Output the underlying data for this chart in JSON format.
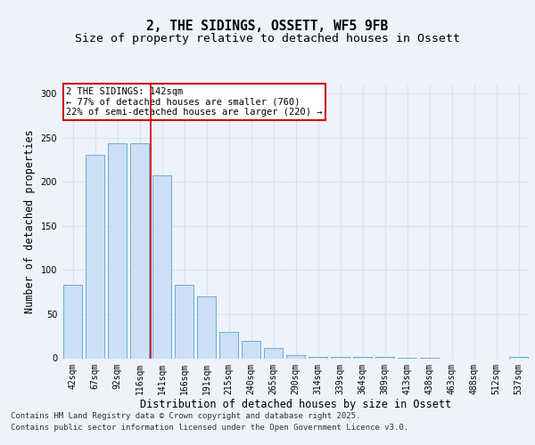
{
  "title_line1": "2, THE SIDINGS, OSSETT, WF5 9FB",
  "title_line2": "Size of property relative to detached houses in Ossett",
  "xlabel": "Distribution of detached houses by size in Ossett",
  "ylabel": "Number of detached properties",
  "categories": [
    "42sqm",
    "67sqm",
    "92sqm",
    "116sqm",
    "141sqm",
    "166sqm",
    "191sqm",
    "215sqm",
    "240sqm",
    "265sqm",
    "290sqm",
    "314sqm",
    "339sqm",
    "364sqm",
    "389sqm",
    "413sqm",
    "438sqm",
    "463sqm",
    "488sqm",
    "512sqm",
    "537sqm"
  ],
  "values": [
    83,
    230,
    243,
    243,
    207,
    83,
    70,
    30,
    20,
    12,
    4,
    2,
    2,
    2,
    2,
    1,
    1,
    0,
    0,
    0,
    2
  ],
  "bar_color": "#ccdff5",
  "bar_edge_color": "#6aaed6",
  "vline_color": "#cc0000",
  "vline_x_index": 3,
  "annotation_text": "2 THE SIDINGS: 142sqm\n← 77% of detached houses are smaller (760)\n22% of semi-detached houses are larger (220) →",
  "annotation_box_facecolor": "#ffffff",
  "annotation_box_edgecolor": "#cc0000",
  "footer_line1": "Contains HM Land Registry data © Crown copyright and database right 2025.",
  "footer_line2": "Contains public sector information licensed under the Open Government Licence v3.0.",
  "ylim": [
    0,
    310
  ],
  "yticks": [
    0,
    50,
    100,
    150,
    200,
    250,
    300
  ],
  "background_color": "#eef2fa",
  "grid_color": "#d8e4f0",
  "title_fontsize": 10.5,
  "subtitle_fontsize": 9.5,
  "axis_label_fontsize": 8.5,
  "tick_fontsize": 7,
  "footer_fontsize": 6.5,
  "annotation_fontsize": 7.5
}
